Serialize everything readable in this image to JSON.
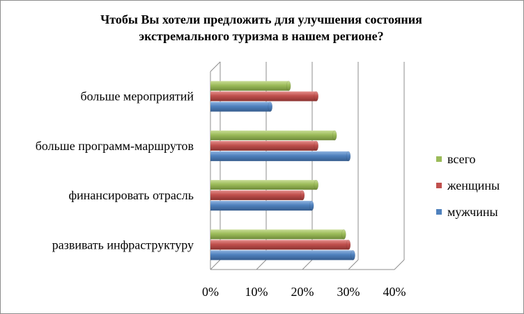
{
  "chart_data": {
    "type": "bar",
    "orientation": "horizontal",
    "title_line1": "Чтобы Вы хотели предложить для улучшения состояния",
    "title_line2": "экстремального туризма  в нашем регионе?",
    "categories": [
      "больше мероприятий",
      "больше программ-маршрутов",
      "финансировать отрасль",
      "развивать инфраструктуру"
    ],
    "series": [
      {
        "name": "всего",
        "color": "#9bbb59",
        "values": [
          17,
          27,
          23,
          29
        ]
      },
      {
        "name": "женщины",
        "color": "#c0504d",
        "values": [
          23,
          23,
          20,
          30
        ]
      },
      {
        "name": "мужчины",
        "color": "#4f81bd",
        "values": [
          13,
          30,
          22,
          31
        ]
      }
    ],
    "xlim": [
      0,
      40
    ],
    "xticks": [
      "0%",
      "10%",
      "20%",
      "30%",
      "40%"
    ],
    "grid": true,
    "legend_position": "right"
  }
}
